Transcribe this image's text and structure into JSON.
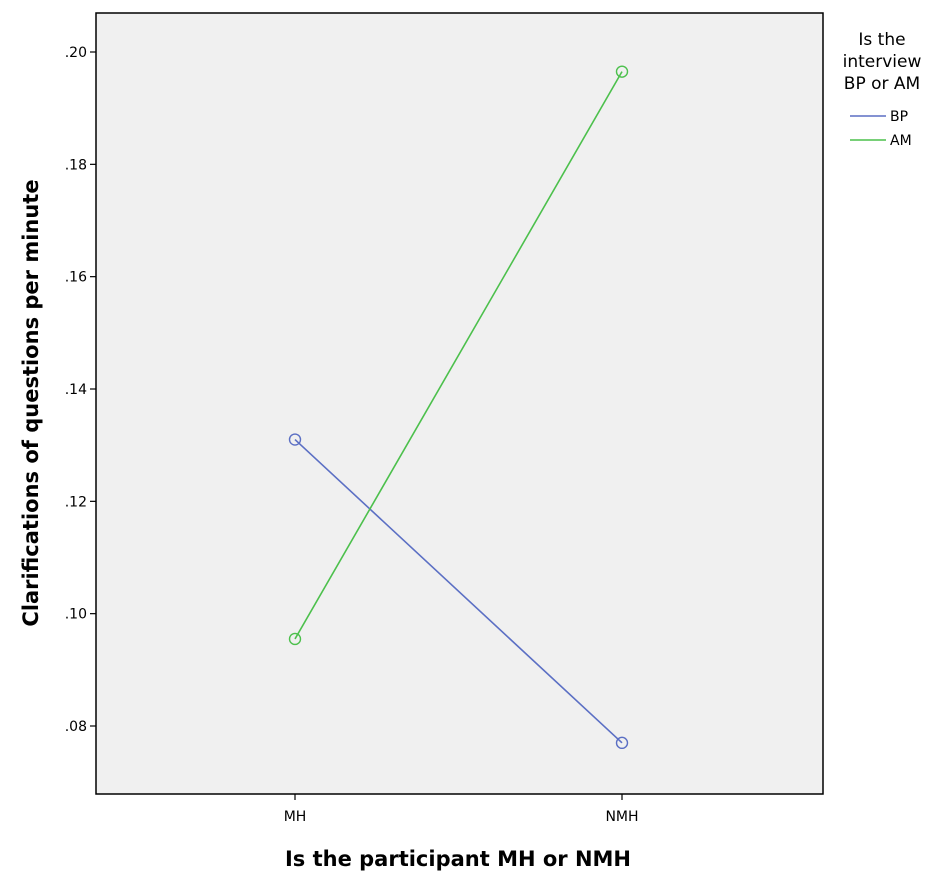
{
  "chart_data": {
    "type": "line",
    "xlabel": "Is the participant MH or NMH",
    "ylabel": "Clarifications of questions per minute",
    "categories": [
      "MH",
      "NMH"
    ],
    "ylim": [
      0.068,
      0.207
    ],
    "yticks": [
      {
        "value": 0.08,
        "label": ".08"
      },
      {
        "value": 0.1,
        "label": ".10"
      },
      {
        "value": 0.12,
        "label": ".12"
      },
      {
        "value": 0.14,
        "label": ".14"
      },
      {
        "value": 0.16,
        "label": ".16"
      },
      {
        "value": 0.18,
        "label": ".18"
      },
      {
        "value": 0.2,
        "label": ".20"
      }
    ],
    "grid": false,
    "legend": {
      "title_lines": [
        "Is the",
        "interview",
        "BP or AM"
      ],
      "placement": "right"
    },
    "series": [
      {
        "name": "BP",
        "color": "#5b6fc4",
        "values": [
          0.131,
          0.077
        ]
      },
      {
        "name": "AM",
        "color": "#4cc04c",
        "values": [
          0.0955,
          0.1965
        ]
      }
    ],
    "plot_background": "#f0f0f0",
    "marker": "open-circle"
  }
}
